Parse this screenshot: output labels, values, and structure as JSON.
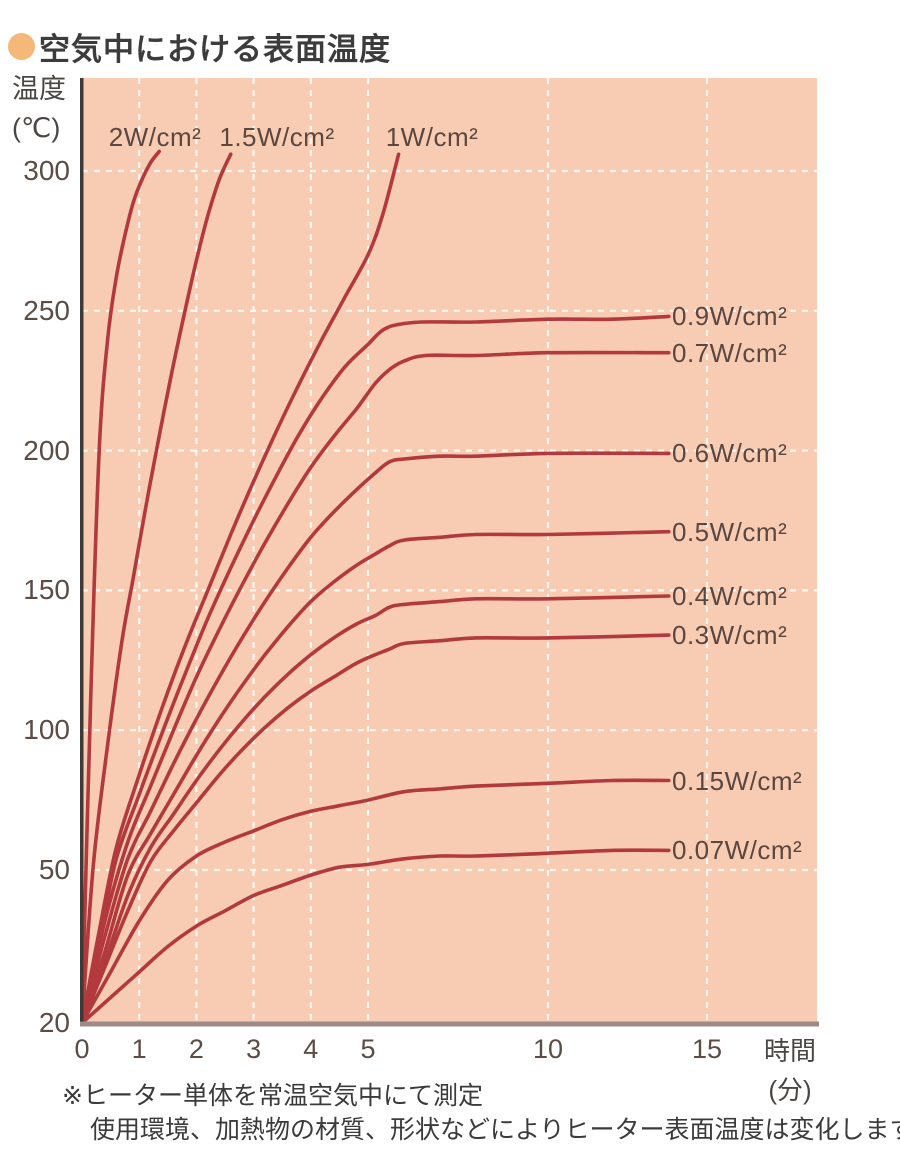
{
  "title": {
    "text": "空気中における表面温度"
  },
  "axes": {
    "y_label_line1": "温度",
    "y_label_line2": "(℃)",
    "x_label_line1": "時間",
    "x_label_line2": "(分)",
    "y_ticks": [
      300,
      250,
      200,
      150,
      100,
      50,
      20
    ],
    "x_ticks": [
      0,
      1,
      2,
      3,
      4,
      5,
      10,
      15
    ]
  },
  "footnotes": [
    "※ヒーター単体を常温空気中にて測定",
    "使用環境、加熱物の材質、形状などによりヒーター表面温度は変化します。"
  ],
  "colors": {
    "plot_background": "#f8ccb3",
    "curve": "#b23a3e",
    "gridline": "#ffffff",
    "y_axis_line": "#3e3a38",
    "x_axis_line": "#9c8c85",
    "title_bullet": "#f5b878",
    "label_text": "#5b4640"
  },
  "chart_data": {
    "type": "line",
    "title": "空気中における表面温度",
    "xlabel": "時間(分)",
    "ylabel": "温度(℃)",
    "x_ticks": [
      0,
      1,
      2,
      3,
      4,
      5,
      10,
      15
    ],
    "y_ticks": [
      20,
      50,
      100,
      150,
      200,
      250,
      300
    ],
    "xlim": [
      0,
      15.5
    ],
    "ylim": [
      20,
      333
    ],
    "grid": "white dashed gridlines on peach background",
    "legend_position": "labels at line ends",
    "x_gridlines": [
      1,
      2,
      3,
      4,
      5,
      10,
      15
    ],
    "y_gridlines": [
      50,
      100,
      150,
      200,
      250,
      300
    ],
    "series": [
      {
        "name": "2W/cm²",
        "label_side": "top",
        "points": [
          [
            0,
            20
          ],
          [
            0.15,
            110
          ],
          [
            0.3,
            200
          ],
          [
            0.45,
            240
          ],
          [
            0.6,
            262
          ],
          [
            0.75,
            277
          ],
          [
            0.9,
            289
          ],
          [
            1.05,
            297
          ],
          [
            1.2,
            303
          ],
          [
            1.35,
            307
          ]
        ]
      },
      {
        "name": "1.5W/cm²",
        "label_side": "top",
        "points": [
          [
            0,
            20
          ],
          [
            0.2,
            52
          ],
          [
            0.45,
            95
          ],
          [
            0.7,
            132
          ],
          [
            0.9,
            155
          ],
          [
            1.1,
            178
          ],
          [
            1.3,
            200
          ],
          [
            1.55,
            226
          ],
          [
            1.8,
            250
          ],
          [
            2.0,
            268
          ],
          [
            2.2,
            284
          ],
          [
            2.4,
            297
          ],
          [
            2.6,
            306
          ]
        ]
      },
      {
        "name": "1W/cm²",
        "label_side": "top",
        "points": [
          [
            0,
            20
          ],
          [
            0.3,
            38
          ],
          [
            0.6,
            58
          ],
          [
            1.0,
            84
          ],
          [
            1.4,
            108
          ],
          [
            1.8,
            130
          ],
          [
            2.2,
            150
          ],
          [
            2.6,
            170
          ],
          [
            3.0,
            189
          ],
          [
            3.4,
            207
          ],
          [
            3.8,
            224
          ],
          [
            4.2,
            240
          ],
          [
            4.6,
            255
          ],
          [
            5.0,
            270
          ],
          [
            5.4,
            284
          ],
          [
            5.85,
            306
          ]
        ]
      },
      {
        "name": "0.9W/cm²",
        "label_side": "right",
        "plateau": 248,
        "points": [
          [
            0,
            20
          ],
          [
            0.3,
            36
          ],
          [
            0.6,
            54
          ],
          [
            1.0,
            77
          ],
          [
            1.4,
            99
          ],
          [
            1.8,
            120
          ],
          [
            2.2,
            140
          ],
          [
            2.6,
            158
          ],
          [
            3.0,
            175
          ],
          [
            3.4,
            191
          ],
          [
            3.8,
            206
          ],
          [
            4.2,
            219
          ],
          [
            4.6,
            230
          ],
          [
            5.0,
            238
          ],
          [
            5.4,
            243
          ],
          [
            5.8,
            245
          ],
          [
            6.5,
            246
          ],
          [
            8,
            246
          ],
          [
            10,
            247
          ],
          [
            12,
            247
          ],
          [
            13.8,
            248
          ]
        ]
      },
      {
        "name": "0.7W/cm²",
        "label_side": "right",
        "plateau": 235,
        "points": [
          [
            0,
            20
          ],
          [
            0.4,
            40
          ],
          [
            0.8,
            60
          ],
          [
            1.2,
            80
          ],
          [
            1.6,
            100
          ],
          [
            2.0,
            119
          ],
          [
            2.4,
            136
          ],
          [
            2.8,
            152
          ],
          [
            3.2,
            167
          ],
          [
            3.6,
            181
          ],
          [
            4.0,
            194
          ],
          [
            4.4,
            205
          ],
          [
            4.8,
            215
          ],
          [
            5.2,
            224
          ],
          [
            5.6,
            229
          ],
          [
            6.0,
            232
          ],
          [
            6.6,
            234
          ],
          [
            8,
            234
          ],
          [
            10,
            235
          ],
          [
            13.8,
            235
          ]
        ]
      },
      {
        "name": "0.6W/cm²",
        "label_side": "right",
        "plateau": 199,
        "points": [
          [
            0,
            20
          ],
          [
            0.4,
            37
          ],
          [
            0.8,
            54
          ],
          [
            1.2,
            71
          ],
          [
            1.6,
            88
          ],
          [
            2.0,
            104
          ],
          [
            2.4,
            119
          ],
          [
            2.8,
            133
          ],
          [
            3.2,
            146
          ],
          [
            3.6,
            158
          ],
          [
            4.0,
            169
          ],
          [
            4.4,
            178
          ],
          [
            4.8,
            186
          ],
          [
            5.2,
            192
          ],
          [
            5.6,
            196
          ],
          [
            6.0,
            197
          ],
          [
            7,
            198
          ],
          [
            8,
            198
          ],
          [
            10,
            199
          ],
          [
            13.8,
            199
          ]
        ]
      },
      {
        "name": "0.5W/cm²",
        "label_side": "right",
        "plateau": 171,
        "points": [
          [
            0,
            20
          ],
          [
            0.4,
            34
          ],
          [
            0.8,
            49
          ],
          [
            1.2,
            63
          ],
          [
            1.6,
            77
          ],
          [
            2.0,
            91
          ],
          [
            2.4,
            104
          ],
          [
            2.8,
            116
          ],
          [
            3.2,
            127
          ],
          [
            3.6,
            137
          ],
          [
            4.0,
            146
          ],
          [
            4.4,
            153
          ],
          [
            4.8,
            159
          ],
          [
            5.2,
            163
          ],
          [
            5.6,
            166
          ],
          [
            6.0,
            168
          ],
          [
            7,
            169
          ],
          [
            8,
            170
          ],
          [
            10,
            170
          ],
          [
            13.8,
            171
          ]
        ]
      },
      {
        "name": "0.4W/cm²",
        "label_side": "right",
        "plateau": 148,
        "points": [
          [
            0,
            20
          ],
          [
            0.4,
            32
          ],
          [
            0.8,
            45
          ],
          [
            1.2,
            58
          ],
          [
            1.6,
            70
          ],
          [
            2.0,
            82
          ],
          [
            2.4,
            93
          ],
          [
            2.8,
            103
          ],
          [
            3.2,
            112
          ],
          [
            3.6,
            120
          ],
          [
            4.0,
            127
          ],
          [
            4.4,
            133
          ],
          [
            4.8,
            138
          ],
          [
            5.2,
            141
          ],
          [
            5.6,
            144
          ],
          [
            6.0,
            145
          ],
          [
            7,
            146
          ],
          [
            8,
            147
          ],
          [
            10,
            147
          ],
          [
            13.8,
            148
          ]
        ]
      },
      {
        "name": "0.3W/cm²",
        "label_side": "right",
        "plateau": 134,
        "points": [
          [
            0,
            20
          ],
          [
            0.4,
            31
          ],
          [
            0.8,
            42
          ],
          [
            1.2,
            53
          ],
          [
            1.6,
            64
          ],
          [
            2.0,
            74
          ],
          [
            2.4,
            84
          ],
          [
            2.8,
            93
          ],
          [
            3.2,
            101
          ],
          [
            3.6,
            108
          ],
          [
            4.0,
            114
          ],
          [
            4.4,
            119
          ],
          [
            4.8,
            124
          ],
          [
            5.2,
            127
          ],
          [
            5.6,
            129
          ],
          [
            6.0,
            131
          ],
          [
            7,
            132
          ],
          [
            8,
            133
          ],
          [
            10,
            133
          ],
          [
            13.8,
            134
          ]
        ]
      },
      {
        "name": "0.15W/cm²",
        "label_side": "right",
        "plateau": 82,
        "points": [
          [
            0,
            20
          ],
          [
            0.5,
            30
          ],
          [
            1.0,
            40
          ],
          [
            1.5,
            48
          ],
          [
            2.0,
            55
          ],
          [
            2.5,
            60
          ],
          [
            3.0,
            64
          ],
          [
            3.5,
            68
          ],
          [
            4.0,
            71
          ],
          [
            4.5,
            73
          ],
          [
            5.0,
            75
          ],
          [
            6.0,
            78
          ],
          [
            7.0,
            79
          ],
          [
            8.0,
            80
          ],
          [
            10,
            81
          ],
          [
            12,
            82
          ],
          [
            13.8,
            82
          ]
        ]
      },
      {
        "name": "0.07W/cm²",
        "label_side": "right",
        "plateau": 57,
        "points": [
          [
            0,
            20
          ],
          [
            0.5,
            25
          ],
          [
            1.0,
            30
          ],
          [
            1.5,
            35
          ],
          [
            2.0,
            39
          ],
          [
            2.5,
            42
          ],
          [
            3.0,
            45
          ],
          [
            3.5,
            47
          ],
          [
            4.0,
            49
          ],
          [
            4.5,
            51
          ],
          [
            5.0,
            52
          ],
          [
            6.0,
            54
          ],
          [
            7.0,
            55
          ],
          [
            8.0,
            55
          ],
          [
            10,
            56
          ],
          [
            12,
            57
          ],
          [
            13.8,
            57
          ]
        ]
      }
    ]
  }
}
